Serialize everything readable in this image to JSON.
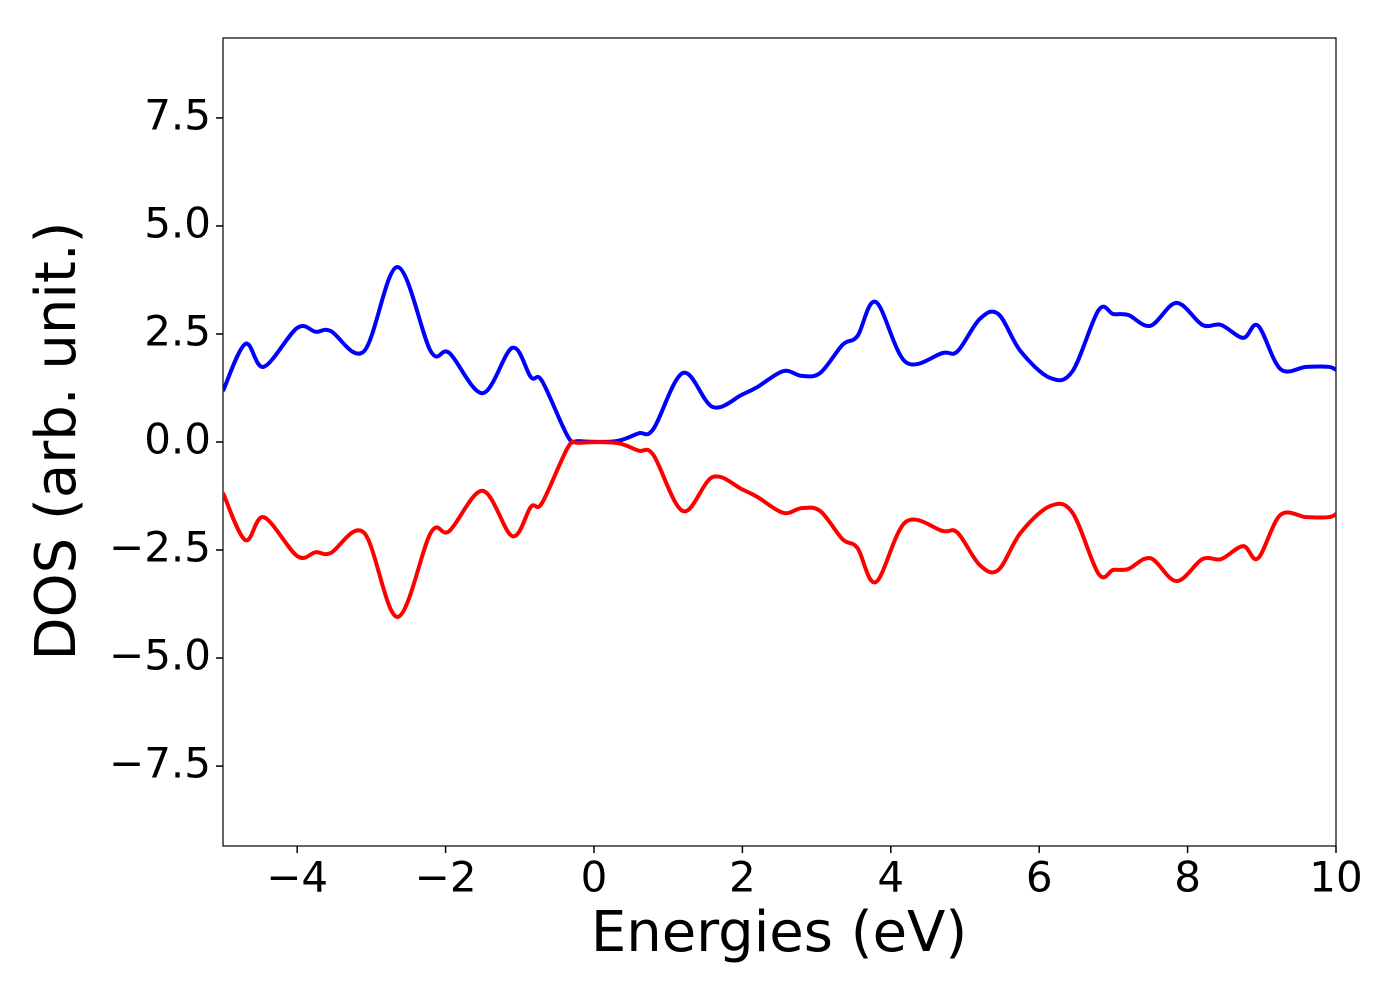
{
  "chart_data": {
    "type": "line",
    "xlabel": "Energies (eV)",
    "ylabel": "DOS (arb. unit.)",
    "xlim": [
      -5,
      10
    ],
    "ylim": [
      -9.35,
      9.35
    ],
    "xticks": [
      {
        "value": -4,
        "label": "−4"
      },
      {
        "value": -2,
        "label": "−2"
      },
      0,
      2,
      4,
      6,
      8,
      10
    ],
    "yticks": [
      {
        "value": -7.5,
        "label": "−7.5"
      },
      {
        "value": -5,
        "label": "−5.0"
      },
      {
        "value": -2.5,
        "label": "−2.5"
      },
      {
        "value": 0,
        "label": "0.0"
      },
      {
        "value": 2.5,
        "label": "2.5"
      },
      {
        "value": 5,
        "label": "5.0"
      },
      {
        "value": 7.5,
        "label": "7.5"
      }
    ],
    "x": [
      -5,
      -4.7,
      -4.45,
      -4.0,
      -3.75,
      -3.55,
      -3.1,
      -2.65,
      -2.2,
      -1.95,
      -1.5,
      -1.1,
      -0.85,
      -0.7,
      -0.35,
      -0.2,
      0.3,
      0.6,
      0.8,
      1.2,
      1.6,
      2.0,
      2.2,
      2.55,
      2.8,
      3.05,
      3.35,
      3.55,
      3.8,
      4.2,
      4.7,
      4.9,
      5.2,
      5.45,
      5.75,
      6.15,
      6.45,
      6.8,
      7.0,
      7.2,
      7.5,
      7.85,
      8.2,
      8.45,
      8.75,
      8.95,
      9.25,
      9.6,
      9.9,
      10
    ],
    "series": [
      {
        "color": "#0000ff",
        "values": [
          1.18,
          2.27,
          1.74,
          2.64,
          2.55,
          2.57,
          2.1,
          4.05,
          2.1,
          2.06,
          1.13,
          2.18,
          1.5,
          1.41,
          0.12,
          0.02,
          0.02,
          0.2,
          0.3,
          1.6,
          0.81,
          1.1,
          1.27,
          1.64,
          1.53,
          1.6,
          2.25,
          2.45,
          3.24,
          1.85,
          2.06,
          2.1,
          2.85,
          2.96,
          2.1,
          1.48,
          1.64,
          3.05,
          2.96,
          2.94,
          2.69,
          3.22,
          2.71,
          2.71,
          2.41,
          2.69,
          1.69,
          1.74,
          1.74,
          1.67
        ]
      },
      {
        "color": "#ff0000",
        "values": [
          -1.18,
          -2.27,
          -1.74,
          -2.64,
          -2.55,
          -2.57,
          -2.1,
          -4.05,
          -2.1,
          -2.06,
          -1.13,
          -2.18,
          -1.5,
          -1.41,
          -0.12,
          -0.02,
          -0.02,
          -0.2,
          -0.3,
          -1.6,
          -0.81,
          -1.1,
          -1.27,
          -1.64,
          -1.53,
          -1.6,
          -2.25,
          -2.45,
          -3.24,
          -1.85,
          -2.06,
          -2.1,
          -2.85,
          -2.96,
          -2.1,
          -1.48,
          -1.64,
          -3.05,
          -2.96,
          -2.94,
          -2.69,
          -3.22,
          -2.71,
          -2.71,
          -2.41,
          -2.69,
          -1.69,
          -1.74,
          -1.74,
          -1.67
        ]
      }
    ]
  }
}
